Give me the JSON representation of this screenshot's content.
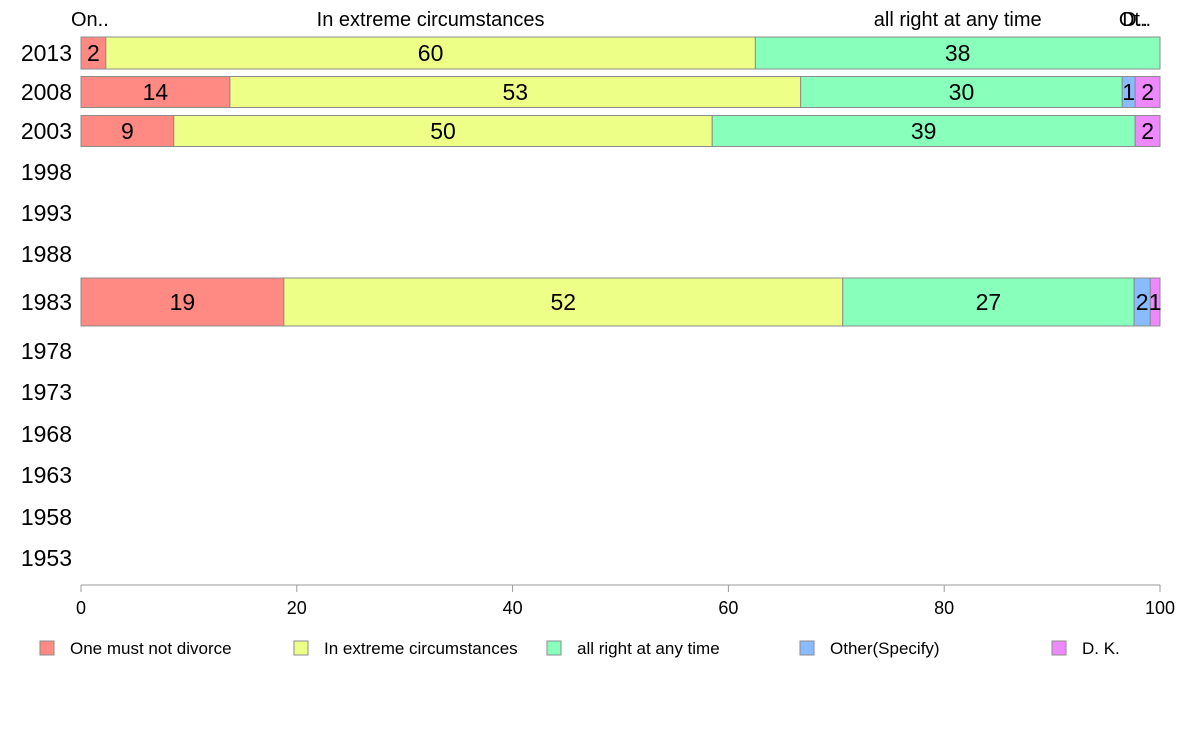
{
  "chart_data": {
    "type": "bar",
    "orientation": "horizontal",
    "stacked": true,
    "categories": [
      "One must not divorce",
      "In extreme circumstances",
      "all right at any time",
      "Other(Specify)",
      "D. K."
    ],
    "colors": [
      "#ff8a84",
      "#eeff88",
      "#88ffbb",
      "#88bbff",
      "#ee88ff"
    ],
    "top_labels": [
      {
        "text": "On..",
        "category": 0
      },
      {
        "text": "In extreme circumstances",
        "category": 1
      },
      {
        "text": "all right at any time",
        "category": 2
      },
      {
        "text": "Ot..",
        "category": 3
      },
      {
        "text": "D..",
        "category": 4
      }
    ],
    "years": [
      "2013",
      "2008",
      "2003",
      "1998",
      "1993",
      "1988",
      "1983",
      "1978",
      "1973",
      "1968",
      "1963",
      "1958",
      "1953"
    ],
    "rows": [
      {
        "year": "2013",
        "values": [
          2.3,
          60.2,
          37.5,
          0,
          0
        ],
        "labels": [
          "2",
          "60",
          "38",
          "",
          ""
        ]
      },
      {
        "year": "2008",
        "values": [
          13.8,
          52.9,
          29.8,
          1.2,
          2.3
        ],
        "labels": [
          "14",
          "53",
          "30",
          "1",
          "2"
        ]
      },
      {
        "year": "2003",
        "values": [
          8.6,
          49.9,
          39.2,
          0,
          2.3
        ],
        "labels": [
          "9",
          "50",
          "39",
          "",
          "2"
        ]
      },
      {
        "year": "1998",
        "values": null
      },
      {
        "year": "1993",
        "values": null
      },
      {
        "year": "1988",
        "values": null
      },
      {
        "year": "1983",
        "values": [
          18.8,
          51.8,
          27.0,
          1.5,
          0.9
        ],
        "labels": [
          "19",
          "52",
          "27",
          "2",
          "1"
        ]
      },
      {
        "year": "1978",
        "values": null
      },
      {
        "year": "1973",
        "values": null
      },
      {
        "year": "1968",
        "values": null
      },
      {
        "year": "1963",
        "values": null
      },
      {
        "year": "1958",
        "values": null
      },
      {
        "year": "1953",
        "values": null
      }
    ],
    "xlim": [
      0,
      100
    ],
    "xticks": [
      0,
      20,
      40,
      60,
      80,
      100
    ],
    "grid": false,
    "legend_position": "bottom"
  }
}
